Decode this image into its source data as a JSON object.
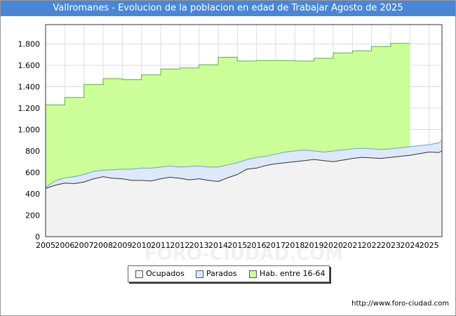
{
  "title": "Vallromanes - Evolucion de la poblacion en edad de Trabajar Agosto de 2025",
  "footer": "http://www.foro-ciudad.com",
  "watermark": "FORO-CIUDAD.COM",
  "chart_data": {
    "type": "area",
    "title": "Vallromanes - Evolucion de la poblacion en edad de Trabajar Agosto de 2025",
    "xlabel": "",
    "ylabel": "",
    "xlim": [
      2005,
      2025.67
    ],
    "ylim": [
      0,
      1980
    ],
    "grid": true,
    "legend_position": "bottom",
    "x_ticks": [
      "2005",
      "2006",
      "2007",
      "2008",
      "2009",
      "2010",
      "2011",
      "2012",
      "2013",
      "2014",
      "2015",
      "2016",
      "2017",
      "2018",
      "2019",
      "2020",
      "2021",
      "2022",
      "2023",
      "2024",
      "2025"
    ],
    "y_ticks": [
      {
        "value": 0,
        "label": "0"
      },
      {
        "value": 200,
        "label": "200"
      },
      {
        "value": 400,
        "label": "400"
      },
      {
        "value": 600,
        "label": "600"
      },
      {
        "value": 800,
        "label": "800"
      },
      {
        "value": 1000,
        "label": "1.000"
      },
      {
        "value": 1200,
        "label": "1.200"
      },
      {
        "value": 1400,
        "label": "1.400"
      },
      {
        "value": 1600,
        "label": "1.600"
      },
      {
        "value": 1800,
        "label": "1.800"
      }
    ],
    "hab_16_64": {
      "name": "Hab. entre 16-64",
      "years": [
        2005,
        2006,
        2007,
        2008,
        2009,
        2010,
        2011,
        2012,
        2013,
        2014,
        2015,
        2016,
        2017,
        2018,
        2019,
        2020,
        2021,
        2022,
        2023
      ],
      "values": [
        1230,
        1300,
        1420,
        1475,
        1465,
        1510,
        1565,
        1575,
        1605,
        1675,
        1640,
        1645,
        1645,
        1640,
        1665,
        1715,
        1735,
        1775,
        1805
      ]
    },
    "series": [
      {
        "name": "Ocupados",
        "color": "#f2f2f2",
        "x": [
          2005.0,
          2005.5,
          2006.0,
          2006.5,
          2007.0,
          2007.5,
          2008.0,
          2008.5,
          2009.0,
          2009.5,
          2010.0,
          2010.5,
          2011.0,
          2011.5,
          2012.0,
          2012.5,
          2013.0,
          2013.5,
          2014.0,
          2014.5,
          2015.0,
          2015.5,
          2016.0,
          2016.5,
          2017.0,
          2017.5,
          2018.0,
          2018.5,
          2019.0,
          2019.5,
          2020.0,
          2020.5,
          2021.0,
          2021.5,
          2022.0,
          2022.5,
          2023.0,
          2023.5,
          2024.0,
          2024.5,
          2025.0,
          2025.5,
          2025.67
        ],
        "values": [
          450,
          480,
          500,
          495,
          510,
          540,
          560,
          545,
          540,
          525,
          525,
          520,
          540,
          555,
          545,
          530,
          540,
          525,
          515,
          550,
          580,
          630,
          640,
          665,
          680,
          690,
          700,
          710,
          720,
          710,
          700,
          715,
          730,
          740,
          735,
          730,
          740,
          750,
          760,
          775,
          790,
          785,
          800
        ]
      },
      {
        "name": "Parados",
        "color": "#dde9f8",
        "x": [
          2005.0,
          2005.5,
          2006.0,
          2006.5,
          2007.0,
          2007.5,
          2008.0,
          2008.5,
          2009.0,
          2009.5,
          2010.0,
          2010.5,
          2011.0,
          2011.5,
          2012.0,
          2012.5,
          2013.0,
          2013.5,
          2014.0,
          2014.5,
          2015.0,
          2015.5,
          2016.0,
          2016.5,
          2017.0,
          2017.5,
          2018.0,
          2018.5,
          2019.0,
          2019.5,
          2020.0,
          2020.5,
          2021.0,
          2021.5,
          2022.0,
          2022.5,
          2023.0,
          2023.5,
          2024.0,
          2024.5,
          2025.0,
          2025.5,
          2025.67
        ],
        "values": [
          460,
          520,
          550,
          560,
          580,
          610,
          620,
          625,
          630,
          630,
          640,
          640,
          650,
          660,
          650,
          655,
          660,
          650,
          650,
          670,
          690,
          720,
          740,
          750,
          770,
          790,
          800,
          810,
          800,
          790,
          800,
          810,
          820,
          825,
          820,
          815,
          820,
          830,
          840,
          850,
          860,
          875,
          900
        ]
      }
    ]
  }
}
